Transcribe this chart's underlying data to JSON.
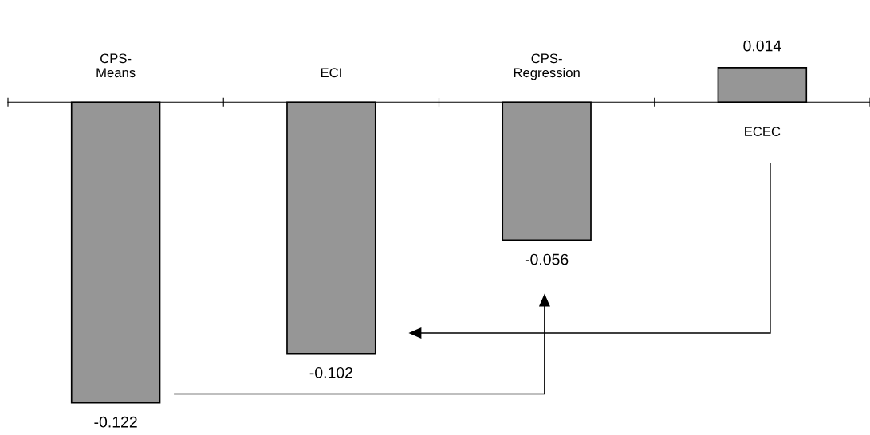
{
  "chart_data": {
    "type": "bar",
    "categories": [
      "CPS-\nMeans",
      "ECI",
      "CPS-\nRegression",
      "ECEC"
    ],
    "values": [
      -0.122,
      -0.102,
      -0.056,
      0.014
    ],
    "color": "#969696",
    "data_labels": true,
    "grid": false,
    "legend": false
  }
}
